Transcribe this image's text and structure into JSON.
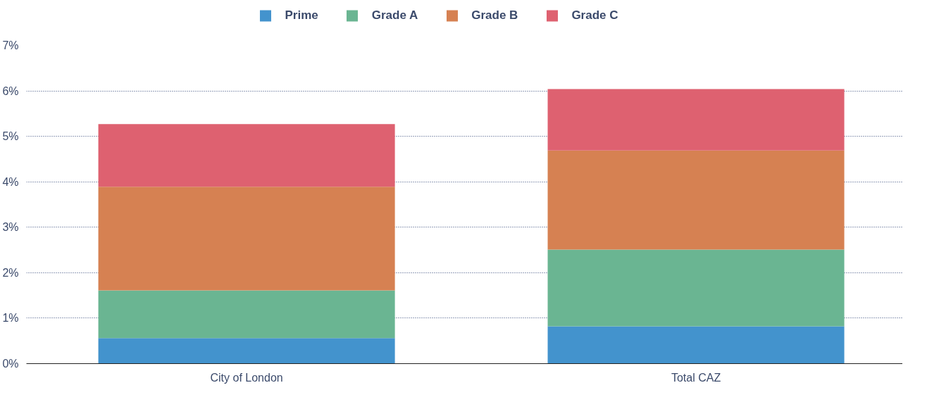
{
  "chart_data": {
    "type": "bar",
    "stacked": true,
    "categories": [
      "City of London",
      "Total CAZ"
    ],
    "series": [
      {
        "name": "Prime",
        "color": "#4393cd",
        "values": [
          0.56,
          0.82
        ]
      },
      {
        "name": "Grade A",
        "color": "#6ab592",
        "values": [
          1.05,
          1.69
        ]
      },
      {
        "name": "Grade B",
        "color": "#d68152",
        "values": [
          2.28,
          2.18
        ]
      },
      {
        "name": "Grade C",
        "color": "#de6170",
        "values": [
          1.38,
          1.35
        ]
      }
    ],
    "ylim": [
      0,
      7
    ],
    "yticks": [
      {
        "value": 0,
        "label": "0%"
      },
      {
        "value": 1,
        "label": "1%"
      },
      {
        "value": 2,
        "label": "2%"
      },
      {
        "value": 3,
        "label": "3%"
      },
      {
        "value": 4,
        "label": "4%"
      },
      {
        "value": 5,
        "label": "5%"
      },
      {
        "value": 6,
        "label": "6%"
      },
      {
        "value": 7,
        "label": "7%"
      }
    ],
    "grid": "y",
    "legend": "top"
  }
}
